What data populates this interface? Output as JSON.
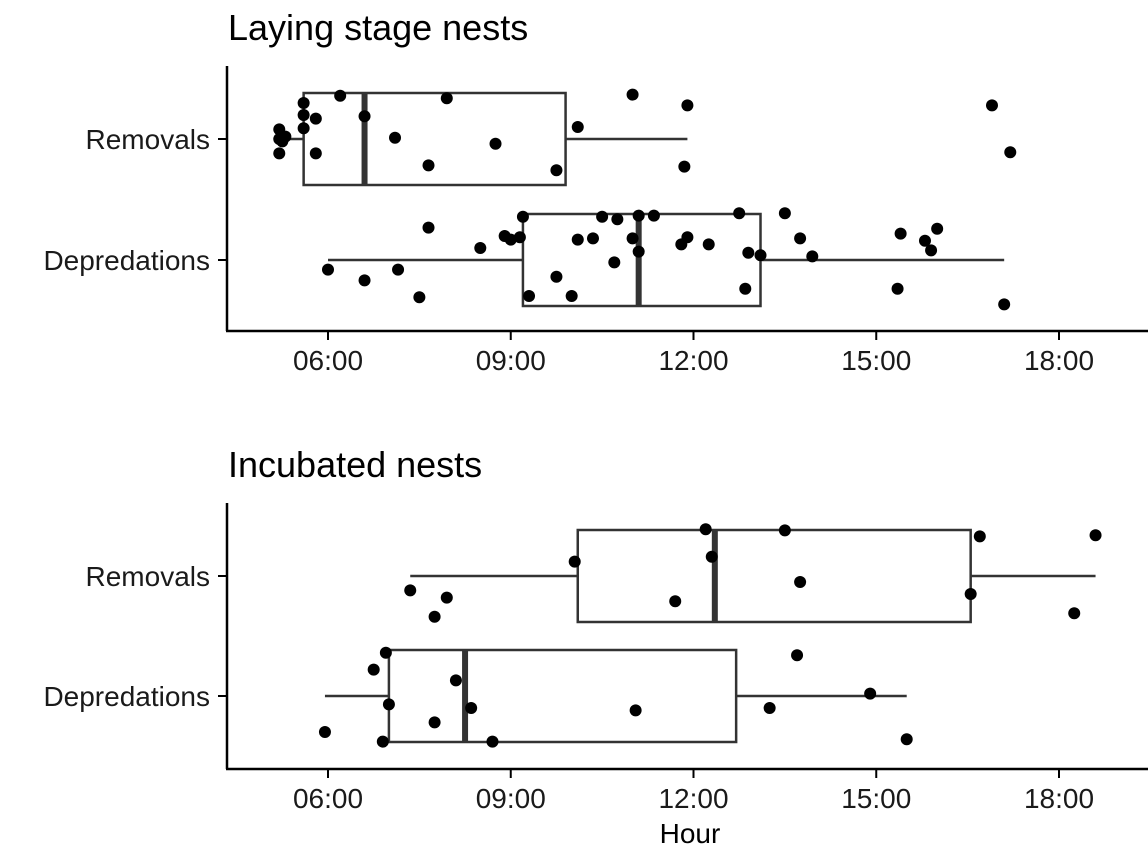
{
  "chart_data": [
    {
      "type": "boxplot",
      "title": "Laying stage nests",
      "xlabel": "",
      "ylabel": "",
      "x_unit": "hour of day",
      "xlim": [
        4.4,
        19.2
      ],
      "x_ticks": [
        6,
        9,
        12,
        15,
        18
      ],
      "x_tick_labels": [
        "06:00",
        "09:00",
        "12:00",
        "15:00",
        "18:00"
      ],
      "grid": false,
      "categories": [
        "Removals",
        "Depredations"
      ],
      "boxes": [
        {
          "name": "Removals",
          "whisker_low": 5.2,
          "q1": 5.6,
          "median": 6.6,
          "q3": 9.9,
          "whisker_high": 11.9,
          "points": [
            {
              "x": 5.2,
              "y": 0.08
            },
            {
              "x": 5.25,
              "y": -0.02
            },
            {
              "x": 5.2,
              "y": -0.12
            },
            {
              "x": 5.3,
              "y": 0.02
            },
            {
              "x": 5.2,
              "y": 0.0
            },
            {
              "x": 5.6,
              "y": 0.3
            },
            {
              "x": 5.6,
              "y": 0.2
            },
            {
              "x": 5.6,
              "y": 0.09
            },
            {
              "x": 5.8,
              "y": 0.17
            },
            {
              "x": 5.8,
              "y": -0.12
            },
            {
              "x": 6.2,
              "y": 0.36
            },
            {
              "x": 6.6,
              "y": 0.19
            },
            {
              "x": 7.1,
              "y": 0.01
            },
            {
              "x": 7.65,
              "y": -0.22
            },
            {
              "x": 7.95,
              "y": 0.34
            },
            {
              "x": 8.75,
              "y": -0.04
            },
            {
              "x": 9.75,
              "y": -0.26
            },
            {
              "x": 10.1,
              "y": 0.1
            },
            {
              "x": 11.0,
              "y": 0.37
            },
            {
              "x": 11.9,
              "y": 0.28
            },
            {
              "x": 11.85,
              "y": -0.23
            },
            {
              "x": 16.9,
              "y": 0.28
            },
            {
              "x": 17.2,
              "y": -0.11
            }
          ]
        },
        {
          "name": "Depredations",
          "whisker_low": 6.0,
          "q1": 9.2,
          "median": 11.1,
          "q3": 13.1,
          "whisker_high": 17.1,
          "points": [
            {
              "x": 6.0,
              "y": -0.08
            },
            {
              "x": 6.6,
              "y": -0.17
            },
            {
              "x": 7.15,
              "y": -0.08
            },
            {
              "x": 7.5,
              "y": -0.31
            },
            {
              "x": 7.65,
              "y": 0.27
            },
            {
              "x": 8.5,
              "y": 0.1
            },
            {
              "x": 8.9,
              "y": 0.2
            },
            {
              "x": 9.0,
              "y": 0.17
            },
            {
              "x": 9.15,
              "y": 0.19
            },
            {
              "x": 9.2,
              "y": 0.36
            },
            {
              "x": 9.3,
              "y": -0.3
            },
            {
              "x": 9.75,
              "y": -0.14
            },
            {
              "x": 10.0,
              "y": -0.3
            },
            {
              "x": 10.1,
              "y": 0.17
            },
            {
              "x": 10.35,
              "y": 0.18
            },
            {
              "x": 10.5,
              "y": 0.36
            },
            {
              "x": 10.7,
              "y": -0.02
            },
            {
              "x": 10.75,
              "y": 0.34
            },
            {
              "x": 11.1,
              "y": 0.37
            },
            {
              "x": 11.0,
              "y": 0.18
            },
            {
              "x": 11.1,
              "y": 0.07
            },
            {
              "x": 11.35,
              "y": 0.37
            },
            {
              "x": 11.8,
              "y": 0.13
            },
            {
              "x": 11.9,
              "y": 0.19
            },
            {
              "x": 12.25,
              "y": 0.13
            },
            {
              "x": 12.75,
              "y": 0.39
            },
            {
              "x": 12.85,
              "y": -0.24
            },
            {
              "x": 12.9,
              "y": 0.06
            },
            {
              "x": 13.1,
              "y": 0.04
            },
            {
              "x": 13.5,
              "y": 0.39
            },
            {
              "x": 13.75,
              "y": 0.18
            },
            {
              "x": 13.95,
              "y": 0.03
            },
            {
              "x": 15.35,
              "y": -0.24
            },
            {
              "x": 15.4,
              "y": 0.22
            },
            {
              "x": 15.8,
              "y": 0.16
            },
            {
              "x": 15.9,
              "y": 0.08
            },
            {
              "x": 16.0,
              "y": 0.26
            },
            {
              "x": 17.1,
              "y": -0.37
            }
          ]
        }
      ]
    },
    {
      "type": "boxplot",
      "title": "Incubated nests",
      "xlabel": "Hour",
      "ylabel": "",
      "x_unit": "hour of day",
      "xlim": [
        4.4,
        19.2
      ],
      "x_ticks": [
        6,
        9,
        12,
        15,
        18
      ],
      "x_tick_labels": [
        "06:00",
        "09:00",
        "12:00",
        "15:00",
        "18:00"
      ],
      "grid": false,
      "categories": [
        "Removals",
        "Depredations"
      ],
      "boxes": [
        {
          "name": "Removals",
          "whisker_low": 7.35,
          "q1": 10.1,
          "median": 12.35,
          "q3": 16.55,
          "whisker_high": 18.6,
          "points": [
            {
              "x": 7.35,
              "y": -0.12
            },
            {
              "x": 7.75,
              "y": -0.34
            },
            {
              "x": 7.95,
              "y": -0.18
            },
            {
              "x": 10.05,
              "y": 0.12
            },
            {
              "x": 11.7,
              "y": -0.21
            },
            {
              "x": 12.2,
              "y": 0.39
            },
            {
              "x": 12.3,
              "y": 0.16
            },
            {
              "x": 13.5,
              "y": 0.38
            },
            {
              "x": 13.75,
              "y": -0.05
            },
            {
              "x": 16.55,
              "y": -0.15
            },
            {
              "x": 16.7,
              "y": 0.33
            },
            {
              "x": 18.25,
              "y": -0.31
            },
            {
              "x": 18.6,
              "y": 0.34
            }
          ]
        },
        {
          "name": "Depredations",
          "whisker_low": 5.95,
          "q1": 7.0,
          "median": 8.25,
          "q3": 12.7,
          "whisker_high": 15.5,
          "points": [
            {
              "x": 5.95,
              "y": -0.3
            },
            {
              "x": 6.75,
              "y": 0.22
            },
            {
              "x": 6.95,
              "y": 0.36
            },
            {
              "x": 6.9,
              "y": -0.38
            },
            {
              "x": 7.0,
              "y": -0.07
            },
            {
              "x": 7.75,
              "y": -0.22
            },
            {
              "x": 8.1,
              "y": 0.13
            },
            {
              "x": 8.35,
              "y": -0.1
            },
            {
              "x": 8.7,
              "y": -0.38
            },
            {
              "x": 11.05,
              "y": -0.12
            },
            {
              "x": 13.25,
              "y": -0.1
            },
            {
              "x": 13.7,
              "y": 0.34
            },
            {
              "x": 14.9,
              "y": 0.02
            },
            {
              "x": 15.5,
              "y": -0.36
            }
          ]
        }
      ]
    }
  ]
}
